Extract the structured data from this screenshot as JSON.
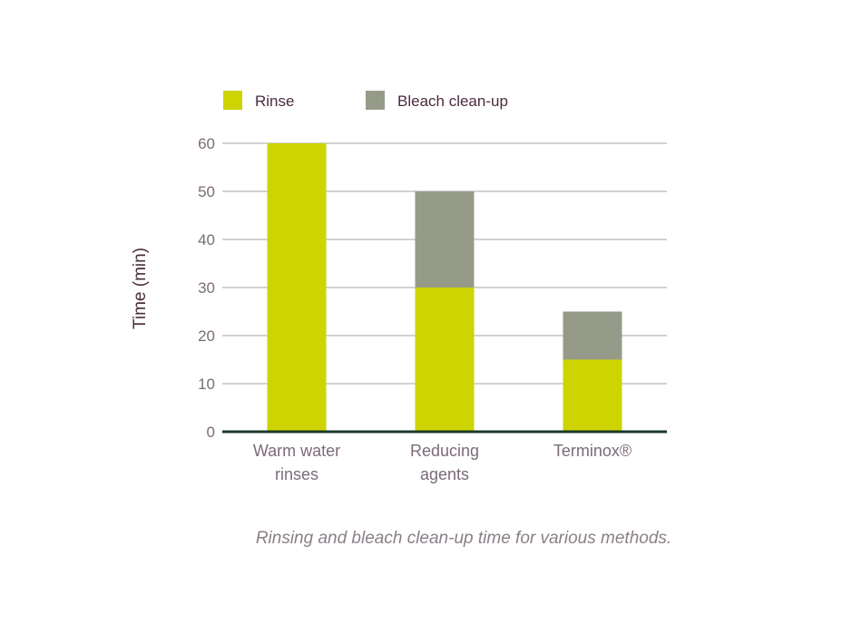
{
  "chart_data": {
    "type": "bar",
    "stacked": true,
    "categories": [
      [
        "Warm water",
        "rinses"
      ],
      [
        "Reducing",
        "agents"
      ],
      [
        "Terminox®"
      ]
    ],
    "series": [
      {
        "name": "Rinse",
        "color": "#cdd400",
        "values": [
          60,
          30,
          15
        ]
      },
      {
        "name": "Bleach clean-up",
        "color": "#969b89",
        "values": [
          0,
          20,
          10
        ]
      }
    ],
    "ylabel": "Time (min)",
    "ylim": [
      0,
      60
    ],
    "yticks": [
      0,
      10,
      20,
      30,
      40,
      50,
      60
    ],
    "grid": true,
    "legend": "top-left"
  },
  "caption": "Rinsing and bleach clean-up time for various methods."
}
